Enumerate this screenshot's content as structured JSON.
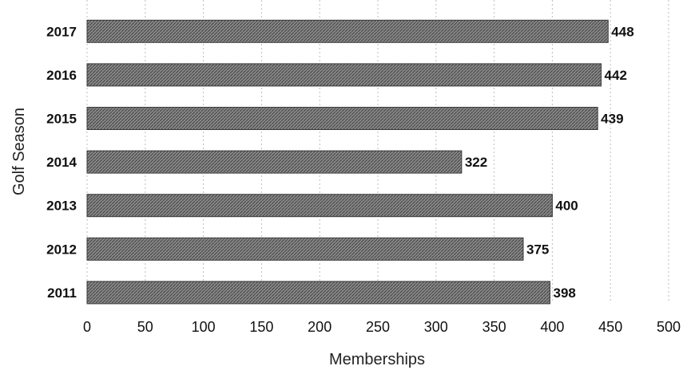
{
  "chart_data": {
    "type": "bar",
    "orientation": "horizontal",
    "title": "",
    "xlabel": "Memberships",
    "ylabel": "Golf Season",
    "categories": [
      "2017",
      "2016",
      "2015",
      "2014",
      "2013",
      "2012",
      "2011"
    ],
    "values": [
      448,
      442,
      439,
      322,
      400,
      375,
      398
    ],
    "xlim": [
      0,
      500
    ],
    "xticks": [
      0,
      50,
      100,
      150,
      200,
      250,
      300,
      350,
      400,
      450,
      500
    ],
    "grid": true,
    "data_labels": true,
    "bar_color": "#6f6f6f"
  }
}
